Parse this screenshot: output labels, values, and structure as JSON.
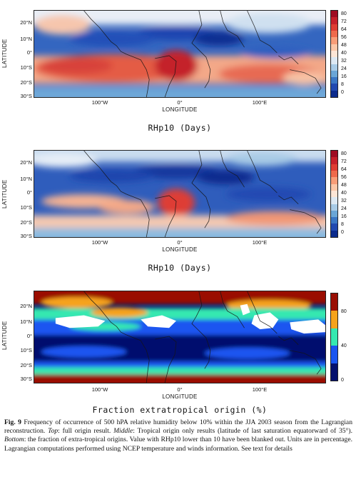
{
  "panels": [
    {
      "id": "top",
      "ylabel": "LATITUDE",
      "xlabel": "LONGITUDE",
      "lat_ticks": [
        "20°N",
        "10°N",
        "0°",
        "10°S",
        "20°S",
        "30°S"
      ],
      "lon_ticks": [
        "100°W",
        "0°",
        "100°E"
      ],
      "colorbar_ticks": [
        "80",
        "72",
        "64",
        "56",
        "48",
        "40",
        "32",
        "24",
        "16",
        "8",
        "0"
      ],
      "subtitle": "RHp10 (Days)"
    },
    {
      "id": "middle",
      "ylabel": "LATITUDE",
      "xlabel": "LONGITUDE",
      "lat_ticks": [
        "20°N",
        "10°N",
        "0°",
        "10°S",
        "20°S",
        "30°S"
      ],
      "lon_ticks": [
        "100°W",
        "0°",
        "100°E"
      ],
      "colorbar_ticks": [
        "80",
        "72",
        "64",
        "56",
        "48",
        "40",
        "32",
        "24",
        "16",
        "8",
        "0"
      ],
      "subtitle": "RHp10 (Days)"
    },
    {
      "id": "bottom",
      "ylabel": "LATITUDE",
      "xlabel": "LONGITUDE",
      "lat_ticks": [
        "20°N",
        "10°N",
        "0°",
        "10°S",
        "20°S",
        "30°S"
      ],
      "lon_ticks": [
        "100°W",
        "0°",
        "100°E"
      ],
      "colorbar_ticks": [
        "80",
        "40",
        "0"
      ],
      "subtitle": "Fraction extratropical origin (%)"
    }
  ],
  "colors": {
    "continuous_scale": [
      "#9e0c22",
      "#c5202b",
      "#de3d34",
      "#ee6a4c",
      "#f89d78",
      "#fcc7a8",
      "#fde6d6",
      "#dde9f3",
      "#a8cbe6",
      "#6aa6d6",
      "#3b77c4",
      "#2149b0",
      "#0b2a8c"
    ],
    "discrete_scale": [
      "#9a0f04",
      "#f6a31b",
      "#36e8b0",
      "#1a55f0",
      "#04106e"
    ],
    "blank": "#ffffff"
  },
  "caption": {
    "fig_label": "Fig. 9",
    "text_1": " Frequency of occurrence of 500 hPA relative humidity below 10% within the JJA 2003 season from the Lagrangian reconstruction. ",
    "top_label": "Top",
    "text_2": ": full origin result. ",
    "middle_label": "Middle",
    "text_3": ": Tropical origin only results (latitude of last saturation equatorward of 35°). ",
    "bottom_label": "Bottom",
    "text_4": ": the fraction of extra-tropical origins. Value with RHp10 lower than 10 have been blanked out. Units are in percentage. Lagrangian computations performed using NCEP temperature and winds information. See text for details"
  }
}
